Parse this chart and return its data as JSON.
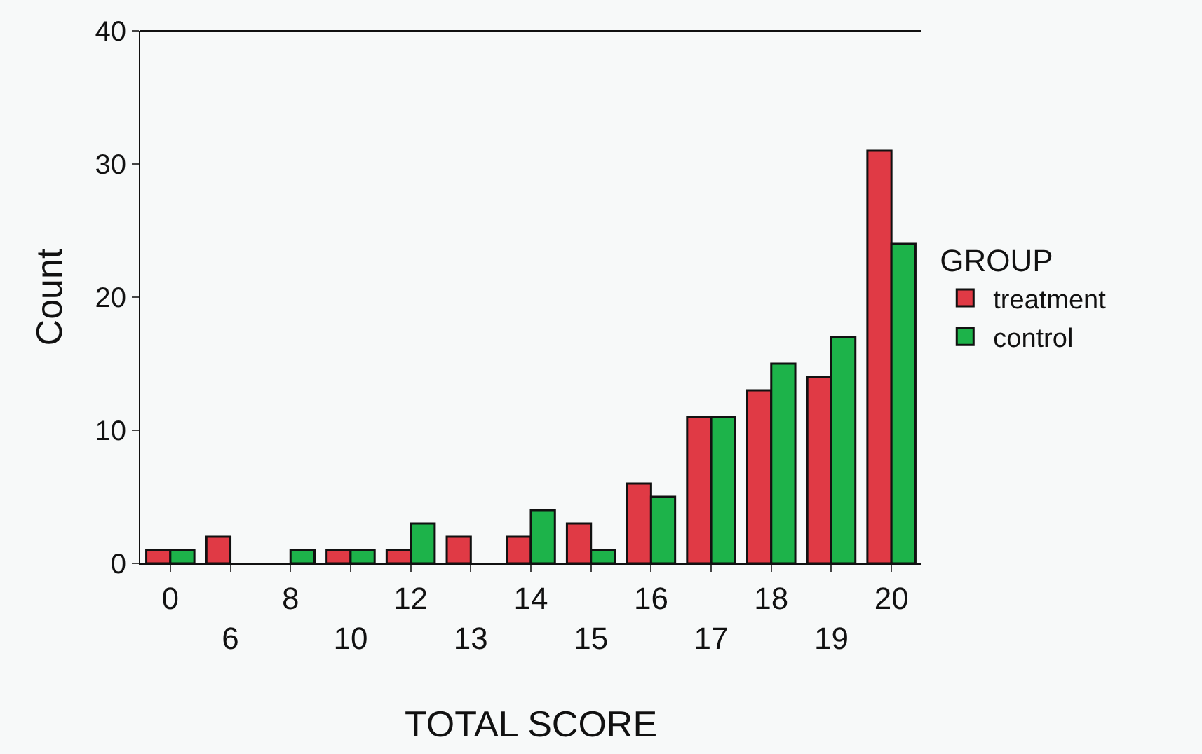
{
  "chart_data": {
    "type": "bar",
    "xlabel": "TOTAL SCORE",
    "ylabel": "Count",
    "legend_title": "GROUP",
    "legend": "right",
    "categories": [
      "0",
      "6",
      "8",
      "10",
      "12",
      "13",
      "14",
      "15",
      "16",
      "17",
      "18",
      "19",
      "20"
    ],
    "series": [
      {
        "name": "treatment",
        "color": "#e03a45",
        "values": [
          1,
          2,
          null,
          1,
          1,
          2,
          2,
          3,
          6,
          11,
          13,
          14,
          31
        ]
      },
      {
        "name": "control",
        "color": "#1db34a",
        "values": [
          1,
          null,
          1,
          1,
          3,
          null,
          4,
          1,
          5,
          11,
          15,
          17,
          24
        ]
      }
    ],
    "ylim": [
      0,
      40
    ],
    "yticks": [
      0,
      10,
      20,
      30,
      40
    ],
    "grid": false
  }
}
